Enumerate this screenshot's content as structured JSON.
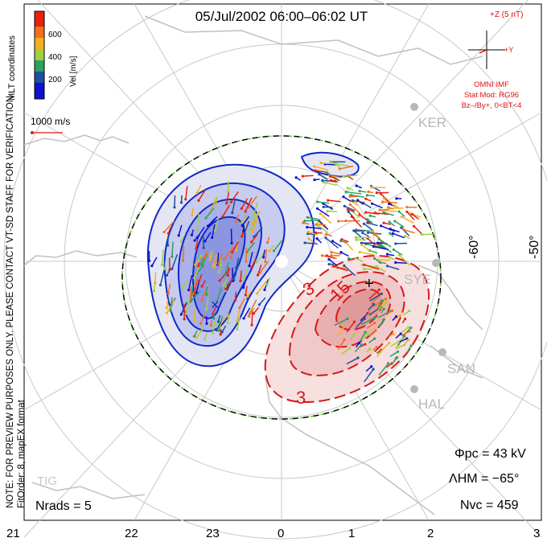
{
  "title": "05/Jul/2002 06:00–06:02 UT",
  "colorbar": {
    "ticks": [
      "600",
      "400",
      "200"
    ],
    "label": "Vel [m/s]",
    "colors": [
      "#e82010",
      "#f07020",
      "#f0b020",
      "#a0d040",
      "#30a060",
      "#2050a0",
      "#1010d0"
    ]
  },
  "reference_vector": "1000 m/s",
  "side_labels": {
    "coords": "MLT coordinates",
    "note_line1": "NOTE: FOR PREVIEW PURPOSES ONLY. PLEASE CONTACT VT-SD STAFF FOR VERIFICATION.",
    "note_line2": "FitOrder: 8, mapEX format"
  },
  "imf": {
    "z_label": "+Z (5 nT)",
    "y_label": "+Y",
    "source": "OMNI IMF",
    "model": "Stat Mod: RG96",
    "condition": "Bz–/By+, 0<BT<4",
    "color": "#e01010"
  },
  "stations": [
    "KER",
    "SYE",
    "SAN",
    "HAL",
    "TIG"
  ],
  "lat_labels": [
    "-60°",
    "-50°"
  ],
  "mlt_labels": [
    "21",
    "22",
    "23",
    "0",
    "1",
    "2",
    "3"
  ],
  "stats": {
    "phi_pc": "Φpc = 43 kV",
    "lambda_hm": "ΛHM = −65°",
    "nvc": "Nvc = 459",
    "nrads": "Nrads = 5"
  },
  "contour_labels": [
    "3",
    "15",
    "3"
  ],
  "colors": {
    "negative_cell": "#1028c8",
    "positive_cell": "#d81818",
    "grid": "#c8c8c8",
    "coast": "#c0c0c0"
  }
}
